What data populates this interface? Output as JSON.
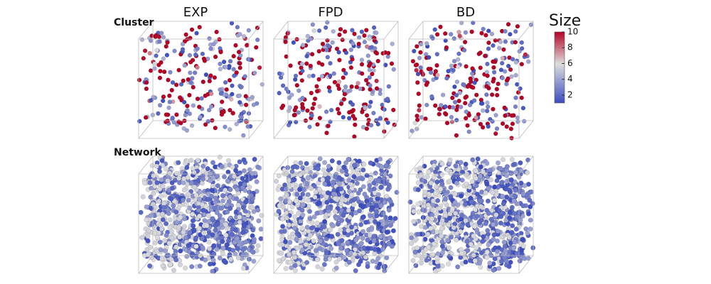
{
  "columns": [
    "EXP",
    "FPD",
    "BD"
  ],
  "rows": [
    "Cluster",
    "Network"
  ],
  "colorbar": {
    "title": "Size",
    "range": [
      1,
      10
    ],
    "ticks": [
      2,
      4,
      6,
      8,
      10
    ],
    "colors": [
      "#3b4cc0",
      "#dddddd",
      "#b40426"
    ]
  }
}
